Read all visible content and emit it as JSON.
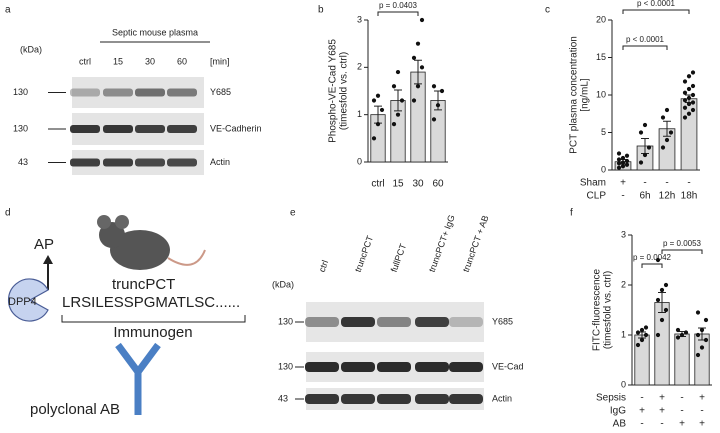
{
  "panels": {
    "a": {
      "letter": "a",
      "title": "Septic mouse plasma",
      "kda": "(kDa)",
      "lanes": [
        "ctrl",
        "15",
        "30",
        "60"
      ],
      "unit": "[min]",
      "rows": [
        {
          "mw": "130",
          "label": "Y685"
        },
        {
          "mw": "130",
          "label": "VE-Cadherin"
        },
        {
          "mw": "43",
          "label": "Actin"
        }
      ]
    },
    "d": {
      "letter": "d",
      "ap": "AP",
      "enzyme": "DPP4",
      "mouse": "truncPCT",
      "sequence": "LRSILESSPGMATLSC......",
      "immunogen": "Immunogen",
      "antibody": "polyclonal AB"
    },
    "e": {
      "letter": "e",
      "kda": "(kDa)",
      "lanes": [
        "ctrl",
        "truncPCT",
        "fullPCT",
        "truncPCT+ IgG",
        "truncPCT + AB"
      ],
      "rows": [
        {
          "mw": "130",
          "label": "Y685"
        },
        {
          "mw": "130",
          "label": "VE-Cad"
        },
        {
          "mw": "43",
          "label": "Actin"
        }
      ]
    }
  },
  "chart_data": [
    {
      "type": "bar",
      "panel": "b",
      "y_label": [
        "Phospho-VE-Cad Y685",
        "(timesfold vs. ctrl)"
      ],
      "categories": [
        "ctrl",
        "15",
        "30",
        "60"
      ],
      "values": [
        1.0,
        1.3,
        1.9,
        1.3
      ],
      "errors": [
        0.18,
        0.22,
        0.25,
        0.2
      ],
      "points": [
        [
          0.5,
          0.8,
          1.1,
          1.3,
          1.4
        ],
        [
          0.8,
          1.0,
          1.3,
          1.6,
          1.9
        ],
        [
          1.3,
          1.6,
          2.0,
          2.2,
          2.5,
          3.0
        ],
        [
          0.9,
          1.2,
          1.5,
          1.6
        ]
      ],
      "color": "#d9d9d9",
      "ylim": [
        0,
        3
      ],
      "yticks": [
        0,
        1,
        2,
        3
      ],
      "annotations": [
        "p = 0.0403"
      ]
    },
    {
      "type": "bar",
      "panel": "c",
      "y_label": [
        "PCT plasma concentration",
        "[ng/mL]"
      ],
      "categories": [
        null,
        null,
        null,
        null
      ],
      "values": [
        1.1,
        3.2,
        5.5,
        9.5
      ],
      "errors": [
        0.3,
        1.0,
        1.0,
        0.5
      ],
      "points": [
        [
          0.3,
          0.5,
          0.7,
          0.9,
          1.0,
          1.2,
          1.4,
          1.6,
          1.9,
          2.2
        ],
        [
          1.0,
          2.0,
          3.0,
          5.0,
          6.0
        ],
        [
          3.0,
          4.0,
          5.0,
          7.0,
          8.0
        ],
        [
          7.0,
          7.5,
          8.0,
          8.3,
          8.8,
          9.0,
          9.3,
          9.6,
          10.0,
          10.3,
          10.8,
          11.2,
          11.8,
          12.5,
          13.0
        ]
      ],
      "x_rows": [
        {
          "label": "Sham",
          "values": [
            "+",
            "-",
            "-",
            "-"
          ]
        },
        {
          "label": "CLP",
          "values": [
            "-",
            "6h",
            "12h",
            "18h"
          ]
        }
      ],
      "color": "#d9d9d9",
      "ylim": [
        0,
        20
      ],
      "yticks": [
        0,
        5,
        10,
        15,
        20
      ],
      "annotations": [
        "p < 0.0001",
        "p < 0.0001"
      ]
    },
    {
      "type": "bar",
      "panel": "f",
      "y_label": [
        "FITC-fluorescence",
        "(timesfold vs. ctrl)"
      ],
      "categories": [
        null,
        null,
        null,
        null
      ],
      "values": [
        1.0,
        1.65,
        1.02,
        1.02
      ],
      "errors": [
        0.06,
        0.2,
        0.05,
        0.12
      ],
      "points": [
        [
          0.8,
          0.9,
          1.0,
          1.05,
          1.1,
          1.15
        ],
        [
          1.0,
          1.3,
          1.5,
          1.7,
          1.9,
          2.0,
          2.5
        ],
        [
          0.95,
          1.0,
          1.05,
          1.1
        ],
        [
          0.6,
          0.75,
          0.9,
          1.0,
          1.1,
          1.3,
          1.45
        ]
      ],
      "x_rows": [
        {
          "label": "Sepsis",
          "values": [
            "-",
            "+",
            "-",
            "+"
          ]
        },
        {
          "label": "IgG",
          "values": [
            "+",
            "+",
            "-",
            "-"
          ]
        },
        {
          "label": "AB",
          "values": [
            "-",
            "-",
            "+",
            "+"
          ]
        }
      ],
      "color": "#d9d9d9",
      "ylim": [
        0,
        3
      ],
      "yticks": [
        0,
        1,
        2,
        3
      ],
      "annotations": [
        "p = 0.0042",
        "p = 0.0053"
      ]
    }
  ]
}
